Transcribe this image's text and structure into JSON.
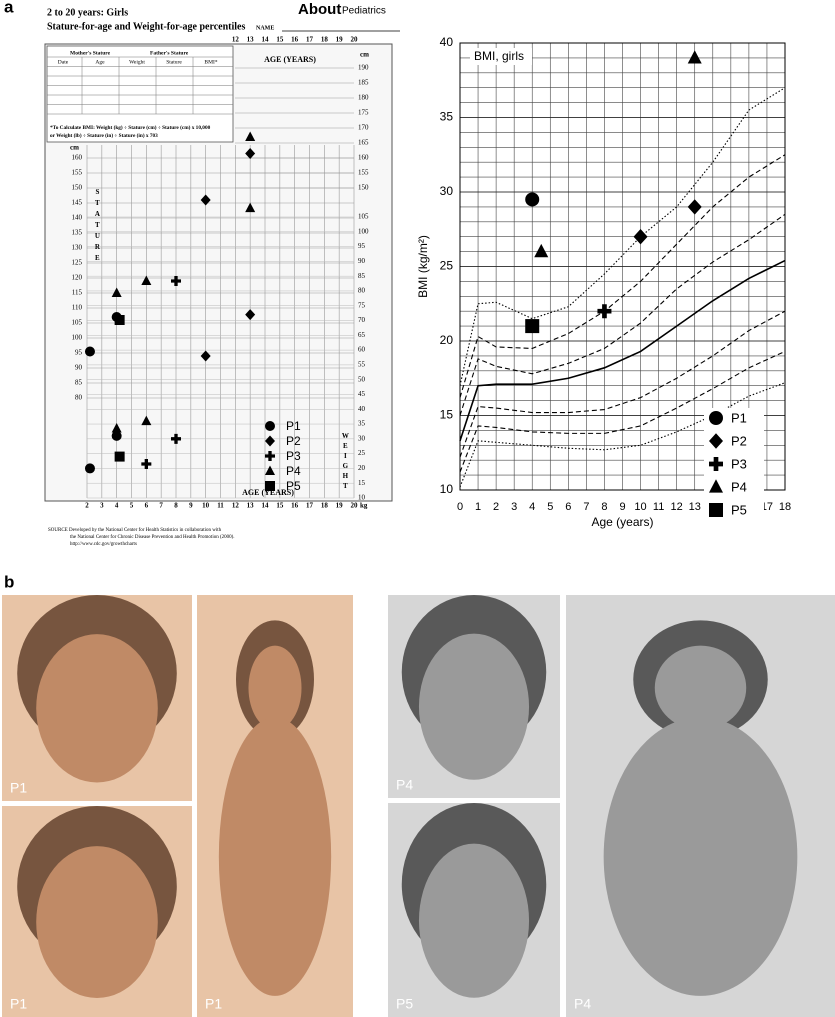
{
  "panel_labels": [
    "a",
    "b"
  ],
  "chart_data": [
    {
      "type": "growth",
      "title": "2 to 20 years: Girls",
      "subtitle": "Stature-for-age and Weight-for-age percentiles",
      "logo": "About",
      "logo_sub": "Pediatrics",
      "name_label": "NAME",
      "table_groups": [
        "Mother's Stature",
        "Father's Stature"
      ],
      "table_headers": [
        "Date",
        "Age",
        "Weight",
        "Stature",
        "BMI*"
      ],
      "bmi_note": [
        "*To Calculate BMI: Weight (kg) ÷ Stature (cm) ÷ Stature (cm) x 10,000",
        "or Weight (lb) ÷ Stature (in) ÷ Stature (in) x 703"
      ],
      "x_label": "AGE (YEARS)",
      "stature_label": "STATURE",
      "weight_label": "WEIGHT",
      "y_unit": "cm",
      "y2_unit": "kg",
      "source": [
        "SOURCE  Developed by the National Center for Health Statistics in collaboration with",
        "the National Center for Chronic Disease Prevention and Health Promotion (2000).",
        "http://www.cdc.gov/growthcharts"
      ],
      "xlim": [
        2,
        20
      ],
      "xticks": [
        2,
        3,
        4,
        5,
        6,
        7,
        8,
        9,
        10,
        11,
        12,
        13,
        14,
        15,
        16,
        17,
        18,
        19,
        20
      ],
      "xticks_top": [
        12,
        13,
        14,
        15,
        16,
        17,
        18,
        19,
        20
      ],
      "ylim": [
        80,
        190
      ],
      "yticks": [
        80,
        85,
        90,
        95,
        100,
        105,
        110,
        115,
        120,
        125,
        130,
        135,
        140,
        145,
        150,
        155,
        160
      ],
      "yticks_right": [
        150,
        155,
        160,
        165,
        170,
        175,
        180,
        185,
        190
      ],
      "y2lim": [
        10,
        105
      ],
      "y2ticks": [
        10,
        15,
        20,
        25,
        30,
        35,
        40,
        45,
        50,
        55,
        60,
        65,
        70,
        75,
        80,
        85,
        90,
        95,
        100,
        105
      ],
      "grid": true,
      "series": [
        {
          "name": "P1",
          "marker": "circle",
          "color": "#000000",
          "x": [
            2.2,
            4
          ],
          "stature": [
            95.5,
            107
          ],
          "weight": [
            20,
            31
          ]
        },
        {
          "name": "P2",
          "marker": "diamond",
          "color": "#000000",
          "x": [
            10,
            13
          ],
          "stature": [
            146,
            161.5
          ],
          "weight": [
            58,
            72
          ]
        },
        {
          "name": "P3",
          "marker": "cross",
          "color": "#000000",
          "x": [
            6,
            8
          ],
          "stature": [
            null,
            119
          ],
          "weight": [
            21.5,
            30
          ]
        },
        {
          "name": "P4",
          "marker": "triangle",
          "color": "#000000",
          "x": [
            4,
            6,
            13
          ],
          "stature": [
            115,
            119,
            167
          ],
          "weight": [
            33.5,
            36,
            108
          ]
        },
        {
          "name": "P5",
          "marker": "square",
          "color": "#000000",
          "x": [
            4.2
          ],
          "stature": [
            106
          ],
          "weight": [
            24
          ]
        }
      ]
    },
    {
      "type": "scatter",
      "title": "BMI, girls",
      "x_label": "Age (years)",
      "y_label": "BMI (kg/m²)",
      "xlim": [
        0,
        18
      ],
      "xticks": [
        0,
        1,
        2,
        3,
        4,
        5,
        6,
        7,
        8,
        9,
        10,
        11,
        12,
        13,
        14,
        15,
        16,
        17,
        18
      ],
      "ylim": [
        10,
        40
      ],
      "yticks": [
        10,
        15,
        20,
        25,
        30,
        35,
        40
      ],
      "minor_ystep": 1,
      "grid": true,
      "legend": "lower right",
      "series": [
        {
          "name": "P1",
          "marker": "circle",
          "color": "#000000",
          "x": [
            4
          ],
          "values": [
            29.5
          ]
        },
        {
          "name": "P2",
          "marker": "diamond",
          "color": "#000000",
          "x": [
            10,
            13
          ],
          "values": [
            27,
            29
          ]
        },
        {
          "name": "P3",
          "marker": "cross",
          "color": "#000000",
          "x": [
            8
          ],
          "values": [
            22
          ]
        },
        {
          "name": "P4",
          "marker": "triangle",
          "color": "#000000",
          "x": [
            4.5,
            13
          ],
          "values": [
            26,
            39
          ]
        },
        {
          "name": "P5",
          "marker": "square",
          "color": "#000000",
          "x": [
            4
          ],
          "values": [
            21
          ]
        }
      ],
      "reference_x": [
        0,
        1,
        2,
        4,
        6,
        8,
        10,
        12,
        14,
        16,
        18
      ],
      "reference_curves": [
        {
          "style": "dotted",
          "values": [
            10.2,
            13.3,
            13.2,
            13,
            12.8,
            12.7,
            13,
            13.9,
            15,
            16.3,
            17.2
          ]
        },
        {
          "style": "dashed",
          "values": [
            11.2,
            14.3,
            14.2,
            13.9,
            13.8,
            13.8,
            14.3,
            15.5,
            16.8,
            18.2,
            19.3
          ]
        },
        {
          "style": "dashed",
          "values": [
            12.2,
            15.6,
            15.5,
            15.2,
            15.2,
            15.4,
            16.2,
            17.5,
            19,
            20.7,
            22
          ]
        },
        {
          "style": "solid",
          "values": [
            13.3,
            17,
            17.1,
            17.1,
            17.5,
            18.2,
            19.3,
            21,
            22.7,
            24.2,
            25.4
          ]
        },
        {
          "style": "dashed",
          "values": [
            15,
            18.8,
            18.3,
            17.8,
            18.5,
            19.5,
            21.2,
            23.5,
            25.3,
            26.8,
            28.5
          ]
        },
        {
          "style": "dashed",
          "values": [
            16.2,
            20.3,
            19.6,
            19.5,
            20.5,
            22,
            24,
            26.5,
            29,
            31,
            32.5
          ]
        },
        {
          "style": "dotted",
          "values": [
            17,
            22.5,
            22.6,
            21.5,
            22.3,
            24.5,
            27,
            29,
            32,
            35.5,
            37
          ]
        }
      ]
    }
  ],
  "photos": [
    {
      "label": "P1",
      "tone": "color"
    },
    {
      "label": "P1",
      "tone": "color"
    },
    {
      "label": "P1",
      "tone": "color"
    },
    {
      "label": "P4",
      "tone": "gray"
    },
    {
      "label": "P5",
      "tone": "gray"
    },
    {
      "label": "P4",
      "tone": "gray"
    }
  ]
}
